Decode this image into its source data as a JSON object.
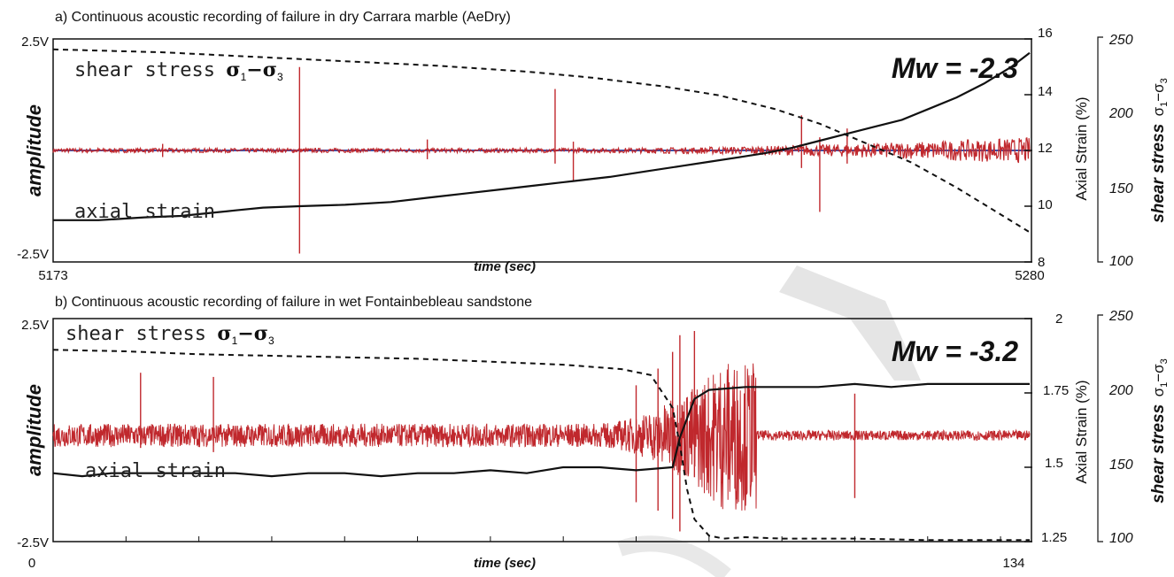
{
  "chart_data": [
    {
      "type": "line",
      "title": "a) Continuous acoustic recording of failure in dry Carrara marble (AeDry)",
      "xlabel": "time (sec)",
      "x_ticks": [
        "5173",
        "5280"
      ],
      "xlim": [
        5173,
        5280
      ],
      "left_axis": {
        "label": "amplitude",
        "ticks": [
          "2.5V",
          "-2.5V"
        ],
        "ylim": [
          -2.5,
          2.5
        ]
      },
      "right_axis": {
        "label": "Axial Strain (%)",
        "ticks": [
          "16",
          "14",
          "12",
          "10",
          "8"
        ],
        "ylim": [
          8,
          16
        ]
      },
      "far_axis": {
        "label": "shear stress",
        "sub1": "1",
        "sub3": "3",
        "ticks": [
          "250",
          "200",
          "150",
          "100"
        ],
        "ylim": [
          100,
          250
        ]
      },
      "annotation": "Mw = -2.3",
      "curve_labels": {
        "stress": "shear stress",
        "strain": "axial strain",
        "sub1": "1",
        "sub3": "3"
      },
      "axial_strain": {
        "x": [
          5173,
          5178,
          5183,
          5187,
          5190,
          5193,
          5196,
          5200,
          5205,
          5210,
          5214,
          5218,
          5222,
          5226,
          5230,
          5234,
          5238,
          5242,
          5245,
          5248,
          5251,
          5254,
          5257,
          5260,
          5263,
          5266,
          5269,
          5272,
          5275,
          5278,
          5280
        ],
        "y": [
          9.5,
          9.5,
          9.6,
          9.65,
          9.75,
          9.85,
          9.95,
          10.0,
          10.05,
          10.15,
          10.3,
          10.45,
          10.6,
          10.75,
          10.9,
          11.05,
          11.25,
          11.45,
          11.6,
          11.75,
          11.9,
          12.1,
          12.35,
          12.6,
          12.85,
          13.1,
          13.5,
          13.9,
          14.4,
          15.0,
          15.5
        ]
      },
      "shear_stress": {
        "x": [
          5173,
          5185,
          5195,
          5205,
          5215,
          5225,
          5232,
          5240,
          5246,
          5252,
          5257,
          5262,
          5267,
          5272,
          5276,
          5280
        ],
        "y": [
          243,
          241,
          238,
          235,
          232,
          228,
          224,
          218,
          212,
          203,
          193,
          180,
          167,
          150,
          135,
          120
        ]
      },
      "acoustic_events": [
        {
          "x": 5200,
          "max": 1.9,
          "min": -2.35
        },
        {
          "x": 5228,
          "max": 1.4,
          "min": -0.3
        },
        {
          "x": 5230,
          "max": 0.2,
          "min": -0.7
        },
        {
          "x": 5255,
          "max": 0.8,
          "min": -0.4
        },
        {
          "x": 5257,
          "max": 0.3,
          "min": -1.4
        },
        {
          "x": 5260,
          "max": 0.5,
          "min": -0.3
        },
        {
          "x": 5214,
          "max": 0.25,
          "min": -0.2
        },
        {
          "x": 5185,
          "max": 0.15,
          "min": -0.15
        }
      ]
    },
    {
      "type": "line",
      "title": "b) Continuous acoustic recording of failure in wet Fontainbebleau sandstone",
      "xlabel": "time (sec)",
      "x_ticks": [
        "0",
        "134"
      ],
      "xlim": [
        0,
        134
      ],
      "left_axis": {
        "label": "amplitude",
        "ticks": [
          "2.5V",
          "-2.5V"
        ],
        "ylim": [
          -2.5,
          2.5
        ]
      },
      "right_axis": {
        "label": "Axial Strain (%)",
        "ticks": [
          "2",
          "1.75",
          "1.5",
          "1.25"
        ],
        "ylim": [
          1.25,
          2
        ]
      },
      "far_axis": {
        "label": "shear stress",
        "sub1": "1",
        "sub3": "3",
        "ticks": [
          "250",
          "200",
          "150",
          "100"
        ],
        "ylim": [
          100,
          250
        ]
      },
      "annotation": "Mw = -3.2",
      "curve_labels": {
        "stress": "shear stress",
        "strain": "axial strain",
        "sub1": "1",
        "sub3": "3"
      },
      "axial_strain": {
        "x": [
          0,
          4,
          8,
          12,
          16,
          20,
          25,
          30,
          35,
          40,
          45,
          50,
          55,
          60,
          65,
          70,
          75,
          80,
          85,
          86,
          88,
          90,
          95,
          100,
          105,
          110,
          115,
          120,
          125,
          130,
          134
        ],
        "y": [
          1.48,
          1.47,
          1.48,
          1.48,
          1.48,
          1.48,
          1.48,
          1.47,
          1.48,
          1.48,
          1.47,
          1.48,
          1.48,
          1.49,
          1.48,
          1.5,
          1.5,
          1.49,
          1.5,
          1.6,
          1.73,
          1.76,
          1.77,
          1.77,
          1.77,
          1.78,
          1.77,
          1.78,
          1.78,
          1.78,
          1.78
        ]
      },
      "shear_stress": {
        "x": [
          0,
          10,
          20,
          30,
          40,
          50,
          60,
          70,
          78,
          82,
          85,
          86,
          87,
          88,
          90,
          92,
          95,
          100,
          110,
          120,
          130,
          134
        ],
        "y": [
          229,
          228,
          226,
          225,
          224,
          223,
          221,
          219,
          216,
          212,
          190,
          165,
          135,
          115,
          104,
          102,
          103,
          102,
          102,
          101,
          101,
          101
        ]
      },
      "acoustic_events": [
        {
          "x": 12,
          "max": 1.5,
          "min": -0.3
        },
        {
          "x": 22,
          "max": 1.4,
          "min": -0.4
        },
        {
          "x": 86,
          "max": 2.4,
          "min": -2.3
        },
        {
          "x": 85,
          "max": 2.0,
          "min": -2.0
        },
        {
          "x": 88,
          "max": 2.5,
          "min": -1.0
        },
        {
          "x": 83,
          "max": 1.6,
          "min": -1.8
        },
        {
          "x": 80,
          "max": 1.2,
          "min": -1.6
        },
        {
          "x": 110,
          "max": 1.0,
          "min": -1.5
        }
      ]
    }
  ]
}
